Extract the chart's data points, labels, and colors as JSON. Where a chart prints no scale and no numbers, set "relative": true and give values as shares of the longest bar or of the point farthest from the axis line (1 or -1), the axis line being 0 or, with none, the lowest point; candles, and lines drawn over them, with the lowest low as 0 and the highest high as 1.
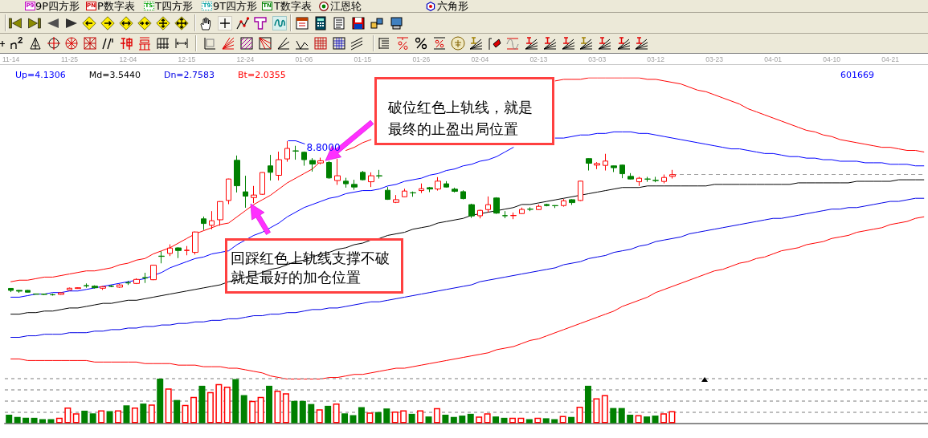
{
  "chart_data": [
    {
      "type": "candlestick",
      "title": "601669",
      "relative": true,
      "legend": "top left",
      "marker": "none",
      "line_style": "solid",
      "categories": [
        "11-14",
        null,
        null,
        null,
        null,
        null,
        null,
        "11-25",
        null,
        null,
        null,
        null,
        null,
        null,
        "12-04",
        null,
        null,
        null,
        null,
        null,
        null,
        "12-15",
        null,
        null,
        null,
        null,
        null,
        null,
        "12-24",
        null,
        null,
        null,
        null,
        null,
        null,
        "01-06",
        null,
        null,
        null,
        null,
        null,
        null,
        "01-15",
        null,
        null,
        null,
        null,
        null,
        null,
        "01-26",
        null,
        null,
        null,
        null,
        null,
        null,
        "02-04",
        null,
        null,
        null,
        null,
        null,
        null,
        "02-13",
        null,
        null,
        null,
        null,
        null,
        null,
        "03-03",
        null,
        null,
        null,
        null,
        null,
        null,
        "03-12",
        null,
        null,
        null,
        null,
        null,
        null,
        "03-23",
        null,
        null,
        null,
        null,
        null,
        null,
        "04-01",
        null,
        null,
        null,
        null,
        null,
        null,
        "04-10",
        null,
        null,
        null,
        null,
        null,
        null,
        "04-21",
        null,
        null,
        null,
        null
      ],
      "ohlc": [
        [
          0.047,
          0.049,
          0.023,
          0.034
        ],
        [
          0.034,
          0.036,
          0.018,
          0.029
        ],
        [
          0.034,
          0.036,
          0.021,
          0.022
        ],
        [
          0.011,
          0.013,
          0.008,
          0.009
        ],
        [
          0.01,
          0.013,
          0.005,
          0.008
        ],
        [
          0.006,
          0.013,
          0,
          0.005
        ],
        [
          0.008,
          0.021,
          0.006,
          0.018
        ],
        [
          0.037,
          0.052,
          0.034,
          0.048
        ],
        [
          0.046,
          0.053,
          0.044,
          0.051
        ],
        [
          0.065,
          0.079,
          0.051,
          0.063
        ],
        [
          0.061,
          0.067,
          0.046,
          0.051
        ],
        [
          0.048,
          0.061,
          0.037,
          0.058
        ],
        [
          0.061,
          0.069,
          0.055,
          0.06
        ],
        [
          0.055,
          0.075,
          0.051,
          0.069
        ],
        [
          0.083,
          0.096,
          0.069,
          0.082
        ],
        [
          0.079,
          0.112,
          0.075,
          0.105
        ],
        [
          0.117,
          0.148,
          0.082,
          0.115
        ],
        [
          0.103,
          0.2,
          0.1,
          0.197
        ],
        [
          0.256,
          0.287,
          0.209,
          0.254
        ],
        [
          0.273,
          0.332,
          0.256,
          0.308
        ],
        [
          0.309,
          0.313,
          0.243,
          0.292
        ],
        [
          0.292,
          0.321,
          0.261,
          0.294
        ],
        [
          0.28,
          0.415,
          0.266,
          0.412
        ],
        [
          0.497,
          0.512,
          0.425,
          0.467
        ],
        [
          0.455,
          0.547,
          0.429,
          0.485
        ],
        [
          0.491,
          0.611,
          0.453,
          0.609
        ],
        [
          0.616,
          0.757,
          0.592,
          0.755
        ],
        [
          0.876,
          0.907,
          0.668,
          0.711
        ],
        [
          0.672,
          0.776,
          0.569,
          0.644
        ],
        [
          0.635,
          0.71,
          0.599,
          0.651
        ],
        [
          0.656,
          0.798,
          0.653,
          0.797
        ],
        [
          0.84,
          0.911,
          0.745,
          0.798
        ],
        [
          0.779,
          0.932,
          0.746,
          0.88
        ],
        [
          0.885,
          1,
          0.867,
          0.953
        ],
        [
          0.937,
          0.97,
          0.88,
          0.936
        ],
        [
          0.928,
          0.933,
          0.841,
          0.88
        ],
        [
          0.875,
          0.89,
          0.803,
          0.852
        ],
        [
          0.859,
          0.893,
          0.85,
          0.873
        ],
        [
          0.862,
          0.871,
          0.757,
          0.762
        ],
        [
          0.745,
          0.885,
          0.717,
          0.776
        ],
        [
          0.741,
          0.763,
          0.699,
          0.724
        ],
        [
          0.72,
          0.75,
          0.685,
          0.703
        ],
        [
          0.798,
          0.807,
          0.746,
          0.75
        ],
        [
          0.737,
          0.798,
          0.703,
          0.776
        ],
        [
          0.776,
          0.814,
          0.758,
          0.775
        ],
        [
          0.682,
          0.703,
          0.62,
          0.623
        ],
        [
          0.604,
          0.651,
          0.599,
          0.621
        ],
        [
          0.64,
          0.692,
          0.638,
          0.677
        ],
        [
          0.666,
          0.674,
          0.64,
          0.665
        ],
        [
          0.68,
          0.726,
          0.664,
          0.692
        ],
        [
          0.699,
          0.704,
          0.67,
          0.69
        ],
        [
          0.69,
          0.767,
          0.68,
          0.741
        ],
        [
          0.724,
          0.741,
          0.7,
          0.703
        ],
        [
          0.689,
          0.699,
          0.668,
          0.675
        ],
        [
          0.673,
          0.682,
          0.623,
          0.628
        ],
        [
          0.589,
          0.595,
          0.503,
          0.516
        ],
        [
          0.517,
          0.556,
          0.5,
          0.552
        ],
        [
          0.557,
          0.642,
          0.538,
          0.589
        ],
        [
          0.632,
          0.637,
          0.529,
          0.534
        ],
        [
          0.518,
          0.547,
          0.501,
          0.517
        ],
        [
          0.518,
          0.538,
          0.495,
          0.519
        ],
        [
          0.531,
          0.57,
          0.529,
          0.558
        ],
        [
          0.56,
          0.572,
          0.547,
          0.559
        ],
        [
          0.557,
          0.59,
          0.555,
          0.578
        ],
        [
          0.59,
          0.595,
          0.578,
          0.583
        ],
        [
          0.583,
          0.585,
          0.567,
          0.582
        ],
        [
          0.583,
          0.625,
          0.576,
          0.614
        ],
        [
          0.621,
          0.624,
          0.587,
          0.602
        ],
        [
          0.616,
          0.743,
          0.613,
          0.741
        ],
        [
          0.887,
          0.889,
          0.81,
          0.857
        ],
        [
          0.845,
          0.864,
          0.819,
          0.855
        ],
        [
          0.843,
          0.918,
          0.81,
          0.871
        ],
        [
          0.84,
          0.842,
          0.8,
          0.828
        ],
        [
          0.845,
          0.848,
          0.76,
          0.789
        ],
        [
          0.772,
          0.793,
          0.752,
          0.755
        ],
        [
          0.737,
          0.769,
          0.71,
          0.76
        ],
        [
          0.755,
          0.769,
          0.737,
          0.754
        ],
        [
          0.746,
          0.769,
          0.734,
          0.745
        ],
        [
          0.739,
          0.784,
          0.727,
          0.765
        ],
        [
          0.772,
          0.814,
          0.758,
          0.783
        ],
        null,
        null,
        null,
        null,
        null,
        null,
        null,
        null,
        null,
        null,
        null,
        null,
        null,
        null,
        null,
        null,
        null,
        null,
        null,
        null,
        null,
        null,
        null,
        null,
        null,
        null,
        null,
        null,
        null,
        null
      ],
      "colors": [
        "#008000",
        "#008000",
        "#008000",
        "#008000",
        "#008000",
        "#008000",
        "#ff0000",
        "#ff0000",
        "#ff0000",
        "#008000",
        "#008000",
        "#ff0000",
        "#008000",
        "#ff0000",
        "#008000",
        "#ff0000",
        "#008000",
        "#ff0000",
        "#008000",
        "#ff0000",
        "#008000",
        "#ff0000",
        "#ff0000",
        "#008000",
        "#ff0000",
        "#ff0000",
        "#ff0000",
        "#008000",
        "#008000",
        "#ff0000",
        "#ff0000",
        "#008000",
        "#ff0000",
        "#ff0000",
        "#008000",
        "#008000",
        "#008000",
        "#ff0000",
        "#008000",
        "#ff0000",
        "#008000",
        "#008000",
        "#008000",
        "#ff0000",
        "#008000",
        "#008000",
        "#ff0000",
        "#ff0000",
        "#008000",
        "#ff0000",
        "#008000",
        "#ff0000",
        "#008000",
        "#008000",
        "#008000",
        "#008000",
        "#ff0000",
        "#ff0000",
        "#008000",
        "#008000",
        "#ff0000",
        "#ff0000",
        "#008000",
        "#ff0000",
        "#008000",
        "#008000",
        "#ff0000",
        "#008000",
        "#ff0000",
        "#008000",
        "#ff0000",
        "#ff0000",
        "#008000",
        "#008000",
        "#008000",
        "#ff0000",
        "#008000",
        "#008000",
        "#ff0000",
        "#ff0000",
        null,
        null,
        null,
        null,
        null,
        null,
        null,
        null,
        null,
        null,
        null,
        null,
        null,
        null,
        null,
        null,
        null,
        null,
        null,
        null,
        null,
        null,
        null,
        null,
        null,
        null,
        null,
        null,
        null,
        null
      ],
      "series": [
        {
          "type": "line",
          "color": "#ff0000",
          "values": [
            0.09,
            0.1,
            0.1,
            0.11,
            0.12,
            0.12,
            0.13,
            0.14,
            0.15,
            0.16,
            0.16,
            0.17,
            0.18,
            0.2,
            0.21,
            0.23,
            0.24,
            0.27,
            0.29,
            0.31,
            0.34,
            0.37,
            0.4,
            0.42,
            0.44,
            0.46,
            0.47,
            0.51,
            0.55,
            0.59,
            0.62,
            0.65,
            0.69,
            0.73,
            0.76,
            0.79,
            0.82,
            0.87,
            null,
            null,
            0.94,
            0.96,
            0.99,
            1.01,
            null,
            null,
            null,
            null,
            null,
            null,
            null,
            null,
            null,
            null,
            null,
            null,
            null,
            null,
            null,
            null,
            null,
            null,
            null,
            null,
            null,
            1.39,
            1.4,
            1.4,
            1.4,
            1.41,
            1.41,
            1.41,
            1.41,
            1.41,
            1.41,
            1.41,
            1.4,
            1.4,
            1.39,
            1.38,
            1.37,
            1.35,
            1.33,
            1.32,
            1.3,
            1.28,
            1.26,
            1.24,
            1.21,
            1.19,
            1.17,
            1.15,
            1.13,
            1.11,
            1.09,
            1.07,
            1.06,
            1.04,
            1.03,
            1.01,
            1.0,
            0.99,
            0.98,
            0.97,
            0.96,
            0.96,
            0.95,
            0.94,
            0.94,
            0.93
          ]
        },
        {
          "type": "line",
          "name": "Up=4.1306",
          "color": "#0000ff",
          "values": [
            -0.01,
            -0.01,
            0.0,
            0.01,
            0.01,
            0.02,
            0.02,
            0.03,
            0.03,
            0.04,
            0.05,
            0.06,
            0.07,
            0.08,
            0.09,
            0.1,
            0.11,
            0.13,
            0.15,
            0.18,
            0.2,
            0.22,
            0.24,
            0.25,
            0.27,
            0.28,
            0.29,
            0.33,
            0.36,
            0.39,
            0.41,
            0.44,
            0.47,
            0.51,
            0.54,
            0.57,
            0.59,
            0.61,
            0.63,
            0.64,
            0.66,
            0.67,
            0.68,
            0.68,
            0.69,
            0.71,
            0.72,
            0.74,
            0.75,
            0.76,
            0.78,
            0.79,
            0.81,
            0.82,
            0.84,
            0.85,
            0.87,
            0.88,
            0.9,
            0.93,
            0.96,
            null,
            null,
            null,
            null,
            1.02,
            1.02,
            1.03,
            1.04,
            1.04,
            1.05,
            1.05,
            1.06,
            1.06,
            1.06,
            1.05,
            1.05,
            1.04,
            1.03,
            1.02,
            1.01,
            1.0,
            0.99,
            0.98,
            0.97,
            0.96,
            0.95,
            0.95,
            0.94,
            0.93,
            0.92,
            0.92,
            0.91,
            0.9,
            0.9,
            0.89,
            0.89,
            0.88,
            0.88,
            0.87,
            0.87,
            0.87,
            0.86,
            0.86,
            0.86,
            0.85,
            0.85,
            0.85,
            0.84,
            0.84
          ]
        },
        {
          "type": "line",
          "name": "Md=3.5440",
          "color": "#000000",
          "values": [
            -0.12,
            -0.12,
            -0.11,
            -0.11,
            -0.1,
            -0.1,
            -0.09,
            -0.08,
            -0.08,
            -0.07,
            -0.06,
            -0.05,
            -0.05,
            -0.04,
            -0.03,
            -0.03,
            -0.02,
            -0.01,
            0.0,
            0.01,
            0.02,
            0.03,
            0.04,
            0.05,
            0.06,
            0.07,
            0.09,
            0.1,
            0.12,
            0.13,
            0.15,
            0.17,
            0.18,
            0.2,
            0.22,
            0.23,
            0.25,
            0.27,
            0.28,
            0.3,
            0.31,
            0.33,
            0.34,
            0.36,
            0.37,
            0.39,
            0.4,
            0.41,
            0.43,
            0.44,
            0.45,
            0.47,
            0.48,
            0.49,
            0.5,
            0.52,
            0.53,
            0.54,
            0.55,
            0.56,
            0.57,
            0.59,
            0.59,
            0.6,
            0.61,
            0.62,
            0.63,
            0.64,
            0.65,
            0.66,
            0.67,
            0.68,
            0.69,
            0.7,
            0.7,
            0.7,
            0.71,
            0.71,
            0.71,
            0.71,
            0.71,
            0.71,
            0.71,
            0.71,
            0.72,
            0.72,
            0.72,
            0.72,
            0.72,
            0.72,
            0.72,
            0.72,
            0.72,
            0.72,
            0.73,
            0.73,
            0.73,
            0.73,
            0.73,
            0.73,
            0.73,
            0.74,
            0.74,
            0.74,
            0.74,
            0.74,
            0.75,
            0.75,
            0.75,
            0.75
          ]
        },
        {
          "type": "line",
          "name": "Dn=2.7583",
          "color": "#0000e6",
          "values": [
            -0.27,
            -0.27,
            -0.26,
            -0.26,
            -0.25,
            -0.25,
            -0.25,
            -0.24,
            -0.24,
            -0.24,
            -0.23,
            -0.23,
            -0.22,
            -0.22,
            -0.21,
            -0.21,
            -0.2,
            -0.2,
            -0.19,
            -0.19,
            -0.18,
            -0.18,
            -0.17,
            -0.17,
            -0.16,
            -0.16,
            -0.15,
            -0.15,
            -0.14,
            -0.13,
            -0.13,
            -0.12,
            -0.12,
            -0.11,
            -0.11,
            -0.1,
            -0.09,
            -0.09,
            -0.08,
            -0.08,
            -0.07,
            -0.06,
            -0.05,
            -0.04,
            -0.04,
            -0.03,
            -0.02,
            -0.01,
            0.0,
            0.01,
            0.02,
            0.03,
            0.04,
            0.05,
            0.06,
            0.07,
            0.09,
            0.1,
            0.11,
            0.12,
            0.13,
            0.14,
            0.15,
            0.16,
            0.17,
            0.18,
            0.2,
            0.21,
            0.22,
            0.24,
            0.25,
            0.26,
            0.28,
            0.29,
            0.3,
            0.32,
            0.33,
            0.35,
            0.36,
            0.37,
            0.38,
            0.4,
            0.41,
            0.42,
            0.43,
            0.44,
            0.45,
            0.46,
            0.47,
            0.48,
            0.49,
            0.5,
            0.5,
            0.51,
            0.52,
            0.53,
            0.54,
            0.55,
            0.56,
            0.56,
            0.57,
            0.57,
            0.58,
            0.59,
            0.6,
            0.61,
            0.61,
            0.62,
            0.63,
            0.63
          ]
        },
        {
          "type": "line",
          "name": "Bt=2.0355",
          "color": "#ff0000",
          "values": [
            -0.41,
            -0.41,
            -0.42,
            -0.42,
            -0.42,
            -0.42,
            -0.42,
            -0.42,
            -0.42,
            -0.42,
            -0.43,
            -0.43,
            -0.43,
            -0.43,
            -0.43,
            -0.43,
            -0.44,
            -0.44,
            -0.44,
            -0.44,
            -0.45,
            -0.45,
            -0.45,
            -0.46,
            -0.46,
            -0.46,
            -0.47,
            -0.47,
            -0.48,
            -0.49,
            -0.5,
            -0.52,
            -0.53,
            -0.54,
            -0.54,
            -0.54,
            -0.54,
            -0.54,
            -0.53,
            -0.53,
            -0.52,
            -0.51,
            -0.51,
            -0.5,
            -0.49,
            -0.48,
            -0.47,
            -0.47,
            -0.46,
            -0.45,
            -0.44,
            -0.43,
            -0.42,
            -0.41,
            -0.4,
            -0.39,
            -0.38,
            -0.37,
            -0.35,
            -0.34,
            -0.33,
            -0.31,
            -0.29,
            -0.28,
            -0.26,
            -0.24,
            -0.22,
            -0.2,
            -0.18,
            -0.16,
            -0.14,
            -0.12,
            -0.1,
            -0.07,
            -0.05,
            -0.03,
            -0.01,
            0.02,
            0.04,
            0.06,
            0.08,
            0.1,
            0.12,
            0.14,
            0.16,
            0.17,
            0.19,
            0.21,
            0.22,
            0.24,
            0.25,
            0.27,
            0.29,
            0.3,
            0.31,
            0.33,
            0.34,
            0.35,
            0.37,
            0.38,
            0.39,
            0.41,
            0.42,
            0.43,
            0.44,
            0.46,
            0.47,
            0.48,
            0.5,
            0.51
          ]
        }
      ],
      "ref_lines": [
        {
          "axis": "y",
          "value": 0.783,
          "color": "#a0a0a0",
          "line_style": "dashed"
        }
      ],
      "annotations": [
        "破位红色上轨线，就是最终的止盈出局位置",
        "回踩红色上轨线支撑不破就是最好的加仓位置",
        "8.8000",
        "P9",
        "9P四方形",
        "PN",
        "P数字表",
        "TS",
        "T四方形",
        "T9",
        "9T四方形",
        "TN",
        "T数字表",
        "江恩轮",
        "六角形"
      ]
    },
    {
      "type": "bar",
      "relative": true,
      "grid": "y",
      "categories": [
        null,
        null,
        null,
        null,
        null,
        null,
        null,
        null,
        null,
        null,
        null,
        null,
        null,
        null,
        null,
        null,
        null,
        null,
        null,
        null,
        null,
        null,
        null,
        null,
        null,
        null,
        null,
        null,
        null,
        null,
        null,
        null,
        null,
        null,
        null,
        null,
        null,
        null,
        null,
        null,
        null,
        null,
        null,
        null,
        null,
        null,
        null,
        null,
        null,
        null,
        null,
        null,
        null,
        null,
        null,
        null,
        null,
        null,
        null,
        null,
        null,
        null,
        null,
        null,
        null,
        null,
        null,
        null,
        null,
        null,
        null,
        null,
        null,
        null,
        null,
        null,
        null,
        null,
        null,
        null,
        null,
        null,
        null,
        null,
        null,
        null,
        null,
        null,
        null,
        null,
        null,
        null,
        null,
        null,
        null,
        null,
        null,
        null,
        null,
        null,
        null,
        null,
        null,
        null,
        null,
        null,
        null,
        null,
        null,
        null
      ],
      "values": [
        0.19,
        0.14,
        0.12,
        0.12,
        0.09,
        0.09,
        0.12,
        0.35,
        0.22,
        0.28,
        0.22,
        0.29,
        0.27,
        0.29,
        0.4,
        0.35,
        0.44,
        0.42,
        1,
        0.78,
        0.52,
        0.41,
        0.59,
        0.84,
        0.7,
        0.88,
        0.82,
        0.99,
        0.63,
        0.5,
        0.59,
        0.84,
        0.73,
        0.67,
        0.5,
        0.5,
        0.43,
        0.31,
        0.39,
        0.44,
        0.22,
        0.18,
        0.36,
        0.24,
        0.25,
        0.33,
        0.26,
        0.29,
        0.21,
        0.29,
        0.15,
        0.34,
        0.19,
        0.14,
        0.17,
        0.21,
        0.15,
        0.22,
        0.15,
        0.12,
        0.12,
        0.12,
        0.09,
        0.12,
        0.11,
        0.09,
        0.16,
        0.14,
        0.37,
        0.84,
        0.56,
        0.63,
        0.34,
        0.34,
        0.19,
        0.18,
        0.15,
        0.17,
        0.22,
        0.27,
        null,
        null,
        null,
        null,
        null,
        null,
        null,
        null,
        null,
        null,
        null,
        null,
        null,
        null,
        null,
        null,
        null,
        null,
        null,
        null,
        null,
        null,
        null,
        null,
        null,
        null,
        null,
        null,
        null,
        null
      ],
      "colors": [
        "#008000",
        "#008000",
        "#008000",
        "#008000",
        "#008000",
        "#008000",
        "#ff0000",
        "#ff0000",
        "#ff0000",
        "#008000",
        "#008000",
        "#ff0000",
        "#008000",
        "#ff0000",
        "#008000",
        "#ff0000",
        "#008000",
        "#ff0000",
        "#008000",
        "#ff0000",
        "#008000",
        "#ff0000",
        "#ff0000",
        "#008000",
        "#ff0000",
        "#ff0000",
        "#ff0000",
        "#008000",
        "#008000",
        "#ff0000",
        "#ff0000",
        "#008000",
        "#ff0000",
        "#ff0000",
        "#008000",
        "#008000",
        "#008000",
        "#ff0000",
        "#008000",
        "#ff0000",
        "#008000",
        "#008000",
        "#008000",
        "#ff0000",
        "#008000",
        "#008000",
        "#ff0000",
        "#ff0000",
        "#008000",
        "#ff0000",
        "#008000",
        "#ff0000",
        "#008000",
        "#008000",
        "#008000",
        "#008000",
        "#ff0000",
        "#ff0000",
        "#008000",
        "#008000",
        "#ff0000",
        "#ff0000",
        "#008000",
        "#ff0000",
        "#008000",
        "#008000",
        "#ff0000",
        "#008000",
        "#ff0000",
        "#008000",
        "#ff0000",
        "#ff0000",
        "#008000",
        "#008000",
        "#008000",
        "#ff0000",
        "#008000",
        "#008000",
        "#ff0000",
        "#ff0000",
        null,
        null,
        null,
        null,
        null,
        null,
        null,
        null,
        null,
        null,
        null,
        null,
        null,
        null,
        null,
        null,
        null,
        null,
        null,
        null,
        null,
        null,
        null,
        null,
        null,
        null,
        null,
        null,
        null,
        null
      ]
    }
  ]
}
